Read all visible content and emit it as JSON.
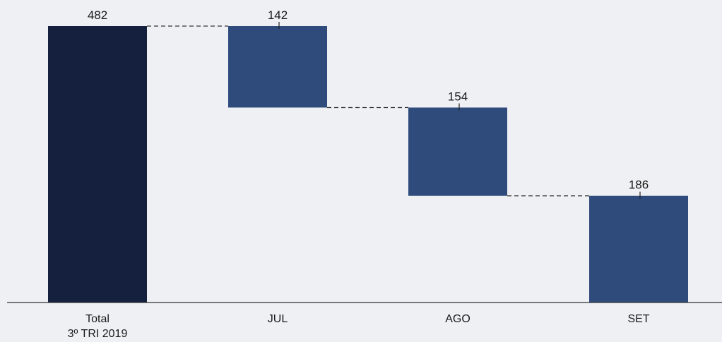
{
  "chart_data": {
    "type": "bar",
    "subtype": "waterfall",
    "title": "",
    "xlabel": "",
    "ylabel": "",
    "categories": [
      [
        "Total",
        "3º TRI 2019"
      ],
      [
        "JUL"
      ],
      [
        "AGO"
      ],
      [
        "SET"
      ]
    ],
    "values": [
      482,
      142,
      154,
      186
    ],
    "bar_kinds": [
      "total",
      "step",
      "step",
      "step"
    ],
    "ylim": [
      0,
      482
    ],
    "grid": false,
    "legend": "none",
    "connectors": "dashed",
    "colors": {
      "total": "#15203f",
      "step": "#2f4b7c",
      "axis": "#333333",
      "connector": "#333333"
    }
  }
}
